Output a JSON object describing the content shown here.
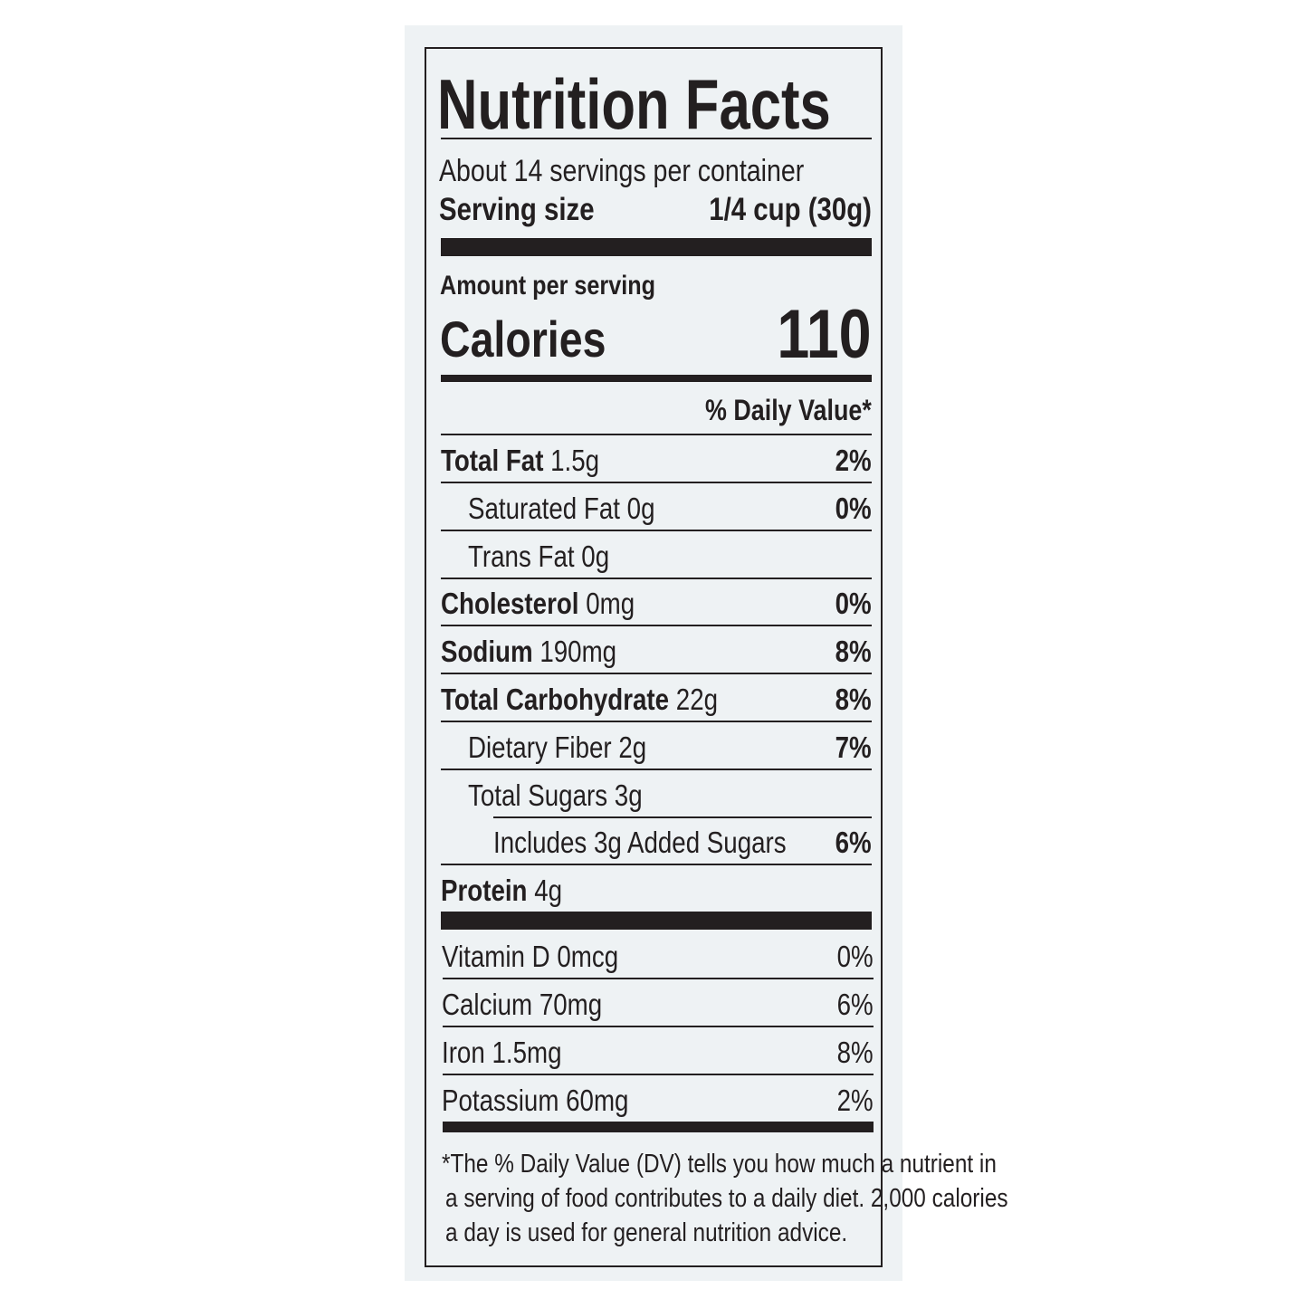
{
  "label": {
    "title": "Nutrition Facts",
    "servings_per_container": "About 14 servings per container",
    "serving_size_label": "Serving size",
    "serving_size_value": "1/4 cup (30g)",
    "amount_per_serving": "Amount per serving",
    "calories_label": "Calories",
    "calories_value": "110",
    "daily_value_header": "% Daily Value*",
    "nutrients": [
      {
        "name": "Total Fat",
        "amount": "1.5g",
        "dv": "2%"
      },
      {
        "name": "Saturated Fat 0g",
        "amount": "",
        "dv": "0%"
      },
      {
        "name": "Trans Fat 0g",
        "amount": "",
        "dv": ""
      },
      {
        "name": "Cholesterol",
        "amount": "0mg",
        "dv": "0%"
      },
      {
        "name": "Sodium",
        "amount": "190mg",
        "dv": "8%"
      },
      {
        "name": "Total Carbohydrate",
        "amount": "22g",
        "dv": "8%"
      },
      {
        "name": "Dietary Fiber 2g",
        "amount": "",
        "dv": "7%"
      },
      {
        "name": "Total Sugars 3g",
        "amount": "",
        "dv": ""
      },
      {
        "name": "Includes 3g Added Sugars",
        "amount": "",
        "dv": "6%"
      },
      {
        "name": "Protein",
        "amount": "4g",
        "dv": ""
      }
    ],
    "vitamins": [
      {
        "name": "Vitamin D 0mcg",
        "dv": "0%"
      },
      {
        "name": "Calcium 70mg",
        "dv": "6%"
      },
      {
        "name": "Iron 1.5mg",
        "dv": "8%"
      },
      {
        "name": "Potassium 60mg",
        "dv": "2%"
      }
    ],
    "footnote": [
      "*The % Daily Value (DV) tells you how much a nutrient in",
      "a serving of food contributes to a daily diet. 2,000 calories",
      "a day is used for general nutrition advice."
    ]
  }
}
